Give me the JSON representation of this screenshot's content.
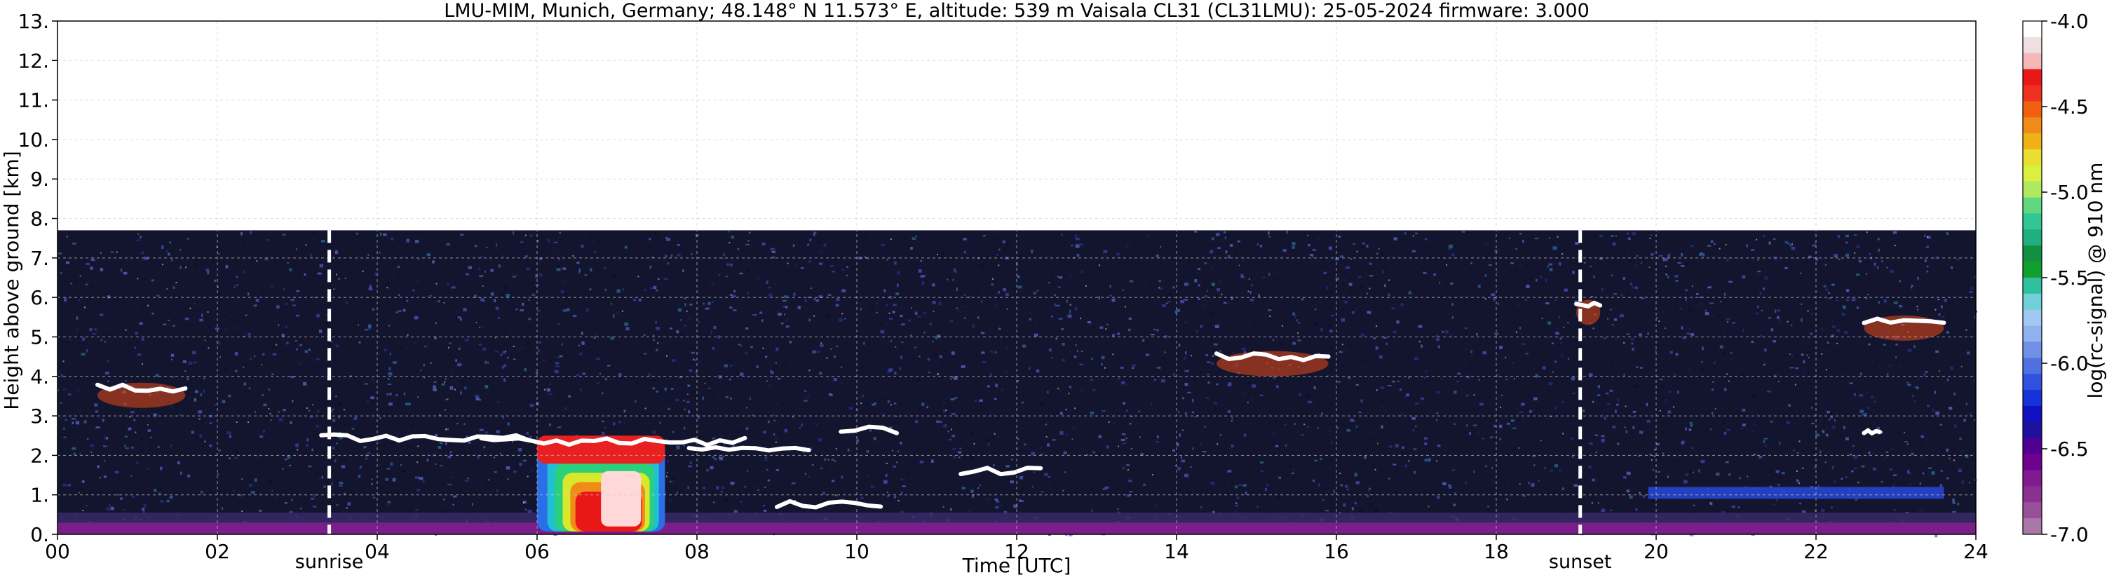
{
  "chart_data": {
    "type": "heatmap",
    "title": "LMU-MIM, Munich, Germany; 48.148° N 11.573° E, altitude: 539 m    Vaisala CL31 (CL31LMU): 25-05-2024    firmware: 3.000",
    "xlabel": "Time [UTC]",
    "ylabel": "Height above ground [km]",
    "colorbar_label": "log(rc-signal) @ 910 nm",
    "xlim": [
      0,
      24
    ],
    "ylim": [
      0,
      13
    ],
    "x_ticks": [
      "00",
      "02",
      "04",
      "06",
      "08",
      "10",
      "12",
      "14",
      "16",
      "18",
      "20",
      "22",
      "24"
    ],
    "y_ticks": [
      "0.",
      "1.",
      "2.",
      "3.",
      "4.",
      "5.",
      "6.",
      "7.",
      "8.",
      "9.",
      "10.",
      "11.",
      "12.",
      "13."
    ],
    "colorbar_range": [
      -7.0,
      -4.0
    ],
    "colorbar_ticks": [
      "-4.0",
      "-4.5",
      "-5.0",
      "-5.5",
      "-6.0",
      "-6.5",
      "-7.0"
    ],
    "grid": true,
    "data_top_km": 7.7,
    "events": [
      {
        "label": "sunrise",
        "time": 3.4
      },
      {
        "label": "sunset",
        "time": 19.05
      }
    ],
    "cloud_layers": [
      {
        "t_start": 3.3,
        "t_end": 5.9,
        "height_km": 2.45
      },
      {
        "t_start": 5.3,
        "t_end": 8.6,
        "height_km": 2.35
      },
      {
        "t_start": 7.9,
        "t_end": 9.4,
        "height_km": 2.2
      },
      {
        "t_start": 9.8,
        "t_end": 10.5,
        "height_km": 2.65
      },
      {
        "t_start": 9.0,
        "t_end": 10.3,
        "height_km": 0.75
      },
      {
        "t_start": 11.3,
        "t_end": 12.3,
        "height_km": 1.6
      },
      {
        "t_start": 14.5,
        "t_end": 15.9,
        "height_km": 4.5
      },
      {
        "t_start": 0.5,
        "t_end": 1.6,
        "height_km": 3.7
      },
      {
        "t_start": 22.6,
        "t_end": 23.6,
        "height_km": 5.4
      },
      {
        "t_start": 19.0,
        "t_end": 19.3,
        "height_km": 5.8
      },
      {
        "t_start": 22.6,
        "t_end": 22.8,
        "height_km": 2.6
      }
    ],
    "boundary_layer_top_km": 0.3,
    "strong_plume": {
      "t_start": 6.0,
      "t_end": 7.6,
      "height_top_km": 2.4
    }
  }
}
